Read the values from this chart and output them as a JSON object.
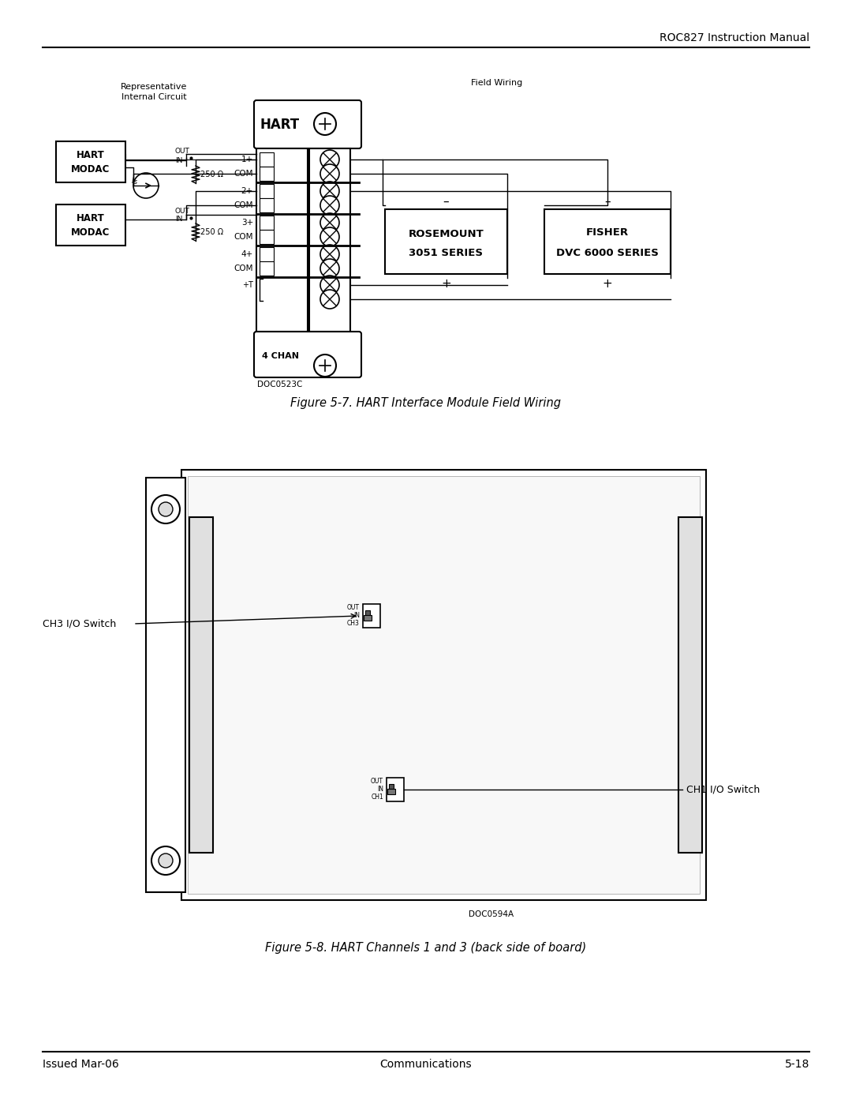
{
  "page_width": 10.8,
  "page_height": 13.97,
  "bg_color": "#ffffff",
  "header_text": "ROC827 Instruction Manual",
  "footer_left": "Issued Mar-06",
  "footer_center": "Communications",
  "footer_right": "5-18",
  "fig1_caption": "Figure 5-7. HART Interface Module Field Wiring",
  "fig2_caption": "Figure 5-8. HART Channels 1 and 3 (back side of board)",
  "fig1_label_internal": "Representative\nInternal Circuit",
  "fig1_label_field": "Field Wiring",
  "fig1_doc": "DOC0523C",
  "fig2_doc": "DOC0594A",
  "fig2_label_ch3": "CH3 I/O Switch",
  "fig2_label_ch1": "CH1 I/O Switch",
  "black": "#000000",
  "white": "#ffffff",
  "gray_light": "#cccccc",
  "gray_med": "#aaaaaa"
}
